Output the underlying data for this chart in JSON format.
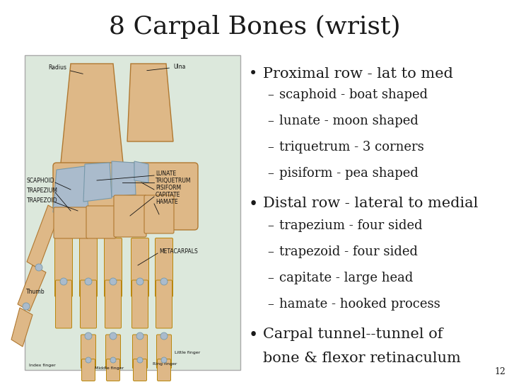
{
  "title": "8 Carpal Bones (wrist)",
  "title_fontsize": 26,
  "background_color": "#ffffff",
  "text_color": "#1a1a1a",
  "bullet1": "Proximal row - lat to med",
  "bullet1_fontsize": 15,
  "sub1": [
    "scaphoid - boat shaped",
    "lunate - moon shaped",
    "triquetrum - 3 corners",
    "pisiform - pea shaped"
  ],
  "sub_fontsize": 13,
  "bullet2": "Distal row - lateral to medial",
  "bullet2_fontsize": 15,
  "sub2": [
    "trapezium - four sided",
    "trapezoid - four sided",
    "capitate - large head",
    "hamate - hooked process"
  ],
  "bullet3_line1": "Carpal tunnel--tunnel of",
  "bullet3_line2": "bone & flexor retinaculum",
  "bullet3_fontsize": 15,
  "page_number": "12",
  "image_bg": "#dce8dc",
  "image_border": "#aaaaaa"
}
